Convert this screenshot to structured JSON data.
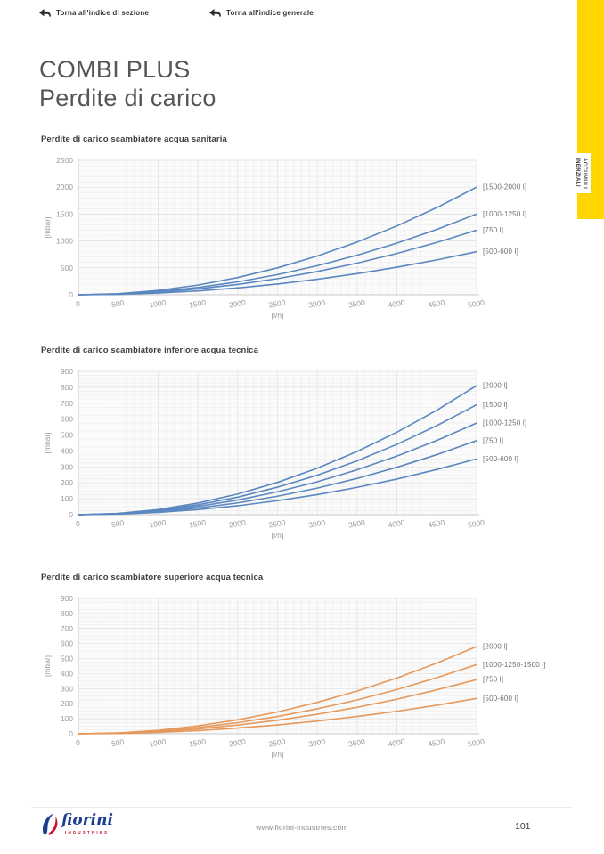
{
  "nav": {
    "section_link": "Torna all'indice di sezione",
    "general_link": "Torna all'indice generale"
  },
  "header": {
    "title_line1": "COMBI PLUS",
    "title_line2": "Perdite di carico"
  },
  "side_tab": {
    "line1": "ACCUMULI",
    "line2": "INERZIALI",
    "bg_color": "#ffd600"
  },
  "footer": {
    "logo_text": "fiorini",
    "logo_subtext": "INDUSTRIES",
    "website": "www.fiorini-industries.com",
    "page_number": "101"
  },
  "chart_data": [
    {
      "type": "line",
      "title": "Perdite di carico scambiatore acqua sanitaria",
      "xlabel": "[l/h]",
      "ylabel": "[mbar]",
      "xlim": [
        0,
        5000
      ],
      "ylim": [
        0,
        2500
      ],
      "xticks": [
        0,
        500,
        1000,
        1500,
        2000,
        2500,
        3000,
        3500,
        4000,
        4500,
        5000
      ],
      "yticks": [
        0,
        500,
        1000,
        1500,
        2000,
        2500
      ],
      "grid": true,
      "legend_position": "right",
      "line_color": "#5b87c0",
      "x": [
        0,
        500,
        1000,
        1500,
        2000,
        2500,
        3000,
        3500,
        4000,
        4500,
        5000
      ],
      "series": [
        {
          "name": "[1500-2000 l]",
          "values": [
            0,
            20,
            80,
            180,
            320,
            500,
            720,
            980,
            1280,
            1620,
            2000
          ]
        },
        {
          "name": "[1000-1250 l]",
          "values": [
            0,
            15,
            60,
            135,
            240,
            375,
            540,
            735,
            960,
            1215,
            1500
          ]
        },
        {
          "name": "[750 l]",
          "values": [
            0,
            12,
            48,
            108,
            192,
            300,
            432,
            588,
            768,
            972,
            1200
          ]
        },
        {
          "name": "[500-600 l]",
          "values": [
            0,
            8,
            32,
            72,
            128,
            200,
            288,
            392,
            512,
            648,
            800
          ]
        }
      ]
    },
    {
      "type": "line",
      "title": "Perdite di carico scambiatore inferiore acqua tecnica",
      "xlabel": "[l/h]",
      "ylabel": "[mbar]",
      "xlim": [
        0,
        5000
      ],
      "ylim": [
        0,
        900
      ],
      "xticks": [
        0,
        500,
        1000,
        1500,
        2000,
        2500,
        3000,
        3500,
        4000,
        4500,
        5000
      ],
      "yticks": [
        0,
        100,
        200,
        300,
        400,
        500,
        600,
        700,
        800,
        900
      ],
      "grid": true,
      "legend_position": "right",
      "line_color": "#5b87c0",
      "x": [
        0,
        500,
        1000,
        1500,
        2000,
        2500,
        3000,
        3500,
        4000,
        4500,
        5000
      ],
      "series": [
        {
          "name": "[2000 l]",
          "values": [
            0,
            8,
            32,
            73,
            130,
            203,
            292,
            397,
            518,
            656,
            810
          ]
        },
        {
          "name": "[1500 l]",
          "values": [
            0,
            7,
            28,
            62,
            110,
            173,
            248,
            338,
            442,
            559,
            690
          ]
        },
        {
          "name": "[1000-1250 l]",
          "values": [
            0,
            6,
            23,
            52,
            92,
            144,
            207,
            282,
            368,
            466,
            575
          ]
        },
        {
          "name": "[750 l]",
          "values": [
            0,
            5,
            19,
            42,
            74,
            116,
            167,
            228,
            298,
            377,
            465
          ]
        },
        {
          "name": "[500-600 l]",
          "values": [
            0,
            4,
            14,
            32,
            56,
            88,
            126,
            172,
            224,
            284,
            350
          ]
        }
      ]
    },
    {
      "type": "line",
      "title": "Perdite di carico scambiatore superiore acqua tecnica",
      "xlabel": "[l/h]",
      "ylabel": "[mbar]",
      "xlim": [
        0,
        5000
      ],
      "ylim": [
        0,
        900
      ],
      "xticks": [
        0,
        500,
        1000,
        1500,
        2000,
        2500,
        3000,
        3500,
        4000,
        4500,
        5000
      ],
      "yticks": [
        0,
        100,
        200,
        300,
        400,
        500,
        600,
        700,
        800,
        900
      ],
      "grid": true,
      "legend_position": "right",
      "line_color": "#e5995c",
      "x": [
        0,
        500,
        1000,
        1500,
        2000,
        2500,
        3000,
        3500,
        4000,
        4500,
        5000
      ],
      "series": [
        {
          "name": "[2000 l]",
          "values": [
            0,
            6,
            23,
            52,
            93,
            145,
            209,
            284,
            371,
            470,
            580
          ]
        },
        {
          "name": "[1000-1250-1500 l]",
          "values": [
            0,
            5,
            18,
            41,
            74,
            115,
            166,
            225,
            294,
            373,
            460
          ]
        },
        {
          "name": "[750 l]",
          "values": [
            0,
            4,
            14,
            32,
            58,
            90,
            130,
            176,
            230,
            292,
            360
          ]
        },
        {
          "name": "[500-600 l]",
          "values": [
            0,
            2,
            9,
            21,
            38,
            59,
            85,
            115,
            150,
            190,
            235
          ]
        }
      ]
    }
  ]
}
